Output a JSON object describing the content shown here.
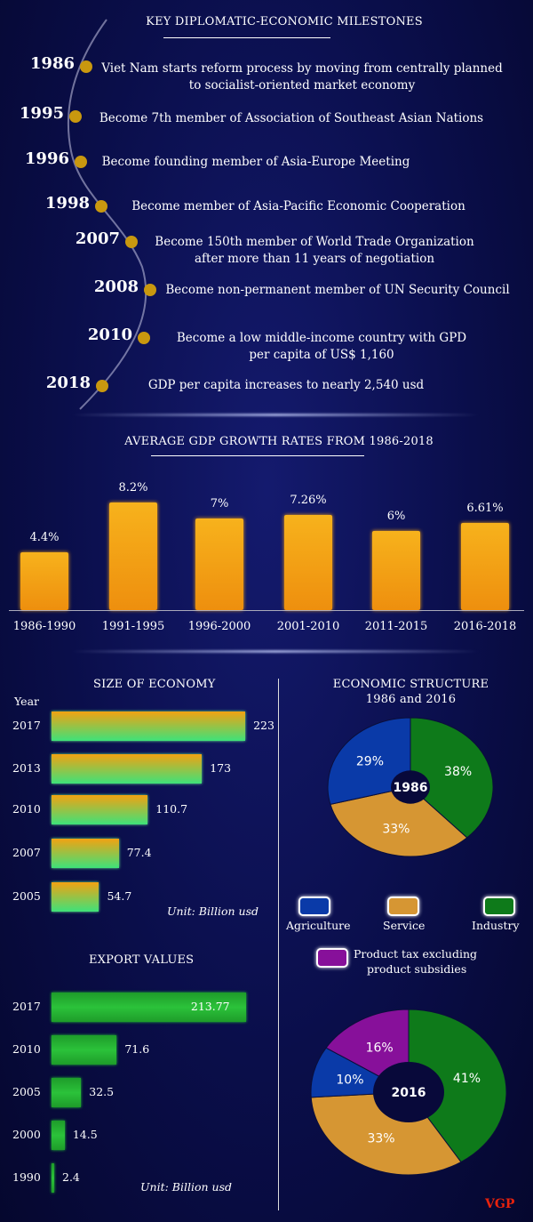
{
  "milestones": {
    "title": "KEY DIPLOMATIC-ECONOMIC MILESTONES",
    "items": [
      {
        "year": "1986",
        "text": [
          "Viet Nam starts reform process by moving from centrally planned",
          "to socialist-oriented market economy"
        ]
      },
      {
        "year": "1995",
        "text": [
          "Become 7th member of Association of Southeast Asian Nations"
        ]
      },
      {
        "year": "1996",
        "text": [
          "Become founding member of Asia-Europe Meeting"
        ]
      },
      {
        "year": "1998",
        "text": [
          "Become member of Asia-Pacific Economic Cooperation"
        ]
      },
      {
        "year": "2007",
        "text": [
          "Become 150th member of World Trade Organization",
          "after more than 11 years of negotiation"
        ]
      },
      {
        "year": "2008",
        "text": [
          "Become non-permanent member of UN Security Council"
        ]
      },
      {
        "year": "2010",
        "text": [
          "Become a low middle-income country with GPD",
          "per capita of US$ 1,160"
        ]
      },
      {
        "year": "2018",
        "text": [
          "GDP per capita increases to nearly 2,540 usd"
        ]
      }
    ],
    "dot_color": "#c9980f"
  },
  "chart_data": [
    {
      "type": "bar",
      "title": "AVERAGE GDP GROWTH RATES FROM 1986-2018",
      "categories": [
        "1986-1990",
        "1991-1995",
        "1996-2000",
        "2001-2010",
        "2011-2015",
        "2016-2018"
      ],
      "values": [
        4.4,
        8.2,
        7,
        7.26,
        6,
        6.61
      ],
      "data_labels": [
        "4.4%",
        "8.2%",
        "7%",
        "7.26%",
        "6%",
        "6.61%"
      ],
      "color": "#f2a212",
      "ylim": [
        0,
        9
      ]
    },
    {
      "type": "bar",
      "orientation": "horizontal",
      "title": "SIZE OF ECONOMY",
      "ylabel": "Year",
      "categories": [
        "2017",
        "2013",
        "2010",
        "2007",
        "2005"
      ],
      "values": [
        223,
        173,
        110.7,
        77.4,
        54.7
      ],
      "data_labels": [
        "223",
        "173",
        "110.7",
        "77.4",
        "54.7"
      ],
      "unit": "Unit: Billion usd",
      "colors": [
        "#f2a212",
        "#3ee27a"
      ]
    },
    {
      "type": "bar",
      "orientation": "horizontal",
      "title": "EXPORT VALUES",
      "categories": [
        "2017",
        "2010",
        "2005",
        "2000",
        "1990"
      ],
      "values": [
        213.77,
        71.6,
        32.5,
        14.5,
        2.4
      ],
      "data_labels": [
        "213.77",
        "71.6",
        "32.5",
        "14.5",
        "2.4"
      ],
      "unit": "Unit: Billion usd",
      "color": "#22b533"
    },
    {
      "type": "pie",
      "title": [
        "ECONOMIC STRUCTURE",
        "1986 and 2016"
      ],
      "legend": [
        {
          "name": "Agriculture",
          "color": "#0a3aa8"
        },
        {
          "name": "Service",
          "color": "#d69633"
        },
        {
          "name": "Industry",
          "color": "#0e7a1a"
        },
        {
          "name": "Product tax excluding product subsidies",
          "lines": [
            "Product tax excluding",
            "product subsidies"
          ],
          "color": "#87109a"
        }
      ],
      "pies": [
        {
          "label": "1986",
          "slices": [
            {
              "name": "Industry",
              "value": 38,
              "label": "38%"
            },
            {
              "name": "Service",
              "value": 33,
              "label": "33%"
            },
            {
              "name": "Agriculture",
              "value": 29,
              "label": "29%"
            }
          ]
        },
        {
          "label": "2016",
          "slices": [
            {
              "name": "Industry",
              "value": 41,
              "label": "41%"
            },
            {
              "name": "Service",
              "value": 33,
              "label": "33%"
            },
            {
              "name": "Agriculture",
              "value": 10,
              "label": "10%"
            },
            {
              "name": "Product tax excluding product subsidies",
              "value": 16,
              "label": "16%"
            }
          ]
        }
      ]
    }
  ],
  "footer": {
    "logo": "VGP",
    "logo_color": "#e8220c"
  }
}
